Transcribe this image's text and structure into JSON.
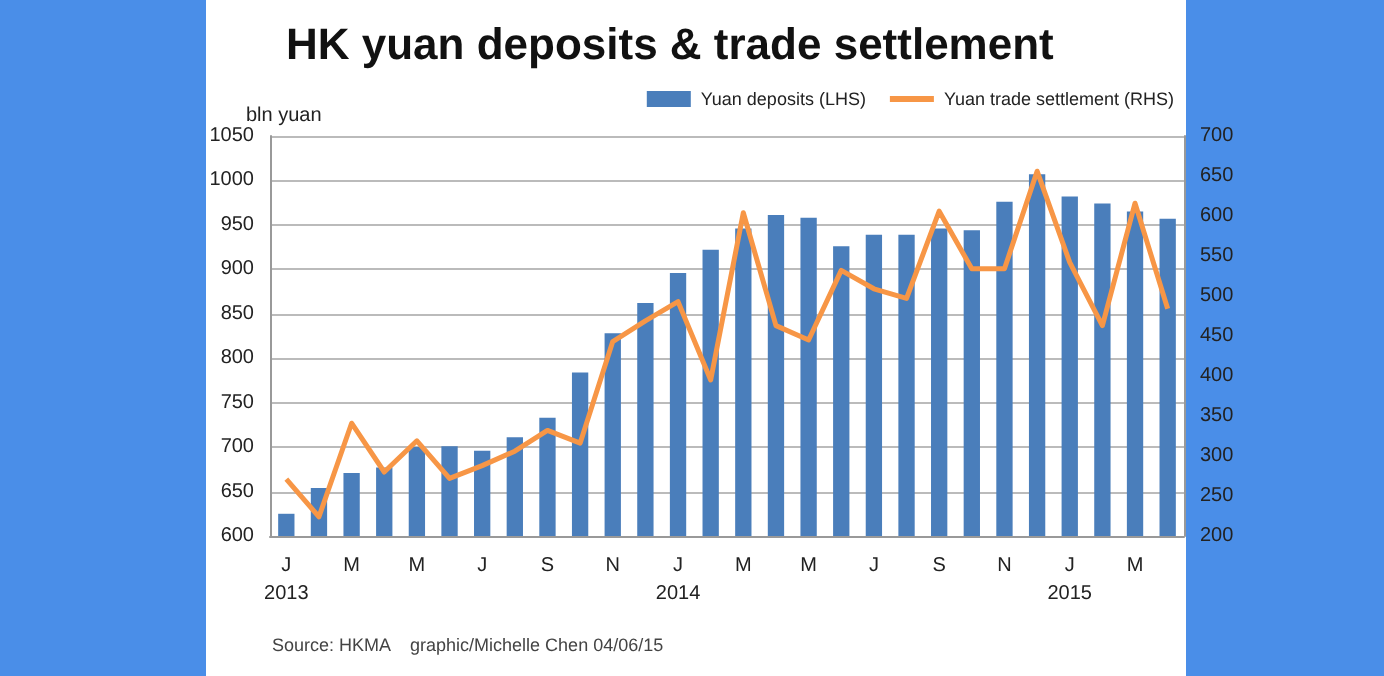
{
  "chart_data": {
    "type": "bar",
    "title": "HK yuan deposits & trade settlement",
    "ylabel": "bln yuan",
    "categories": [
      "J\n2013",
      null,
      "M",
      null,
      "M",
      null,
      "J",
      null,
      "S",
      null,
      "N",
      null,
      "J\n2014",
      null,
      "M",
      null,
      "M",
      null,
      "J",
      null,
      "S",
      null,
      "N",
      null,
      "J\n2015",
      null,
      "M",
      null
    ],
    "series": [
      {
        "name": "Yuan deposits (LHS)",
        "color": "#4a7ebb",
        "values": [
          625,
          654,
          671,
          677,
          700,
          701,
          696,
          711,
          733,
          784,
          828,
          862,
          896,
          922,
          946,
          961,
          958,
          926,
          939,
          939,
          946,
          944,
          976,
          1007,
          982,
          974,
          965,
          957
        ]
      },
      {
        "name": "Yuan trade settlement (RHS)",
        "type": "line",
        "axis": "y2",
        "color": "#f79646",
        "values": [
          271,
          224,
          341,
          280,
          319,
          272,
          288,
          306,
          332,
          316,
          443,
          469,
          493,
          395,
          604,
          463,
          445,
          532,
          509,
          497,
          606,
          534,
          534,
          656,
          542,
          463,
          616,
          484
        ]
      }
    ],
    "ylim": [
      600,
      1050
    ],
    "yticks": [
      600,
      650,
      700,
      750,
      800,
      850,
      900,
      950,
      1000,
      1050
    ],
    "y2lim": [
      200,
      700
    ],
    "y2ticks": [
      200,
      250,
      300,
      350,
      400,
      450,
      500,
      550,
      600,
      650,
      700
    ],
    "grid": "y",
    "legend": "top right",
    "marker": "none",
    "annotations": [
      "Source: HKMA",
      "graphic/Michelle Chen 04/06/15"
    ]
  }
}
